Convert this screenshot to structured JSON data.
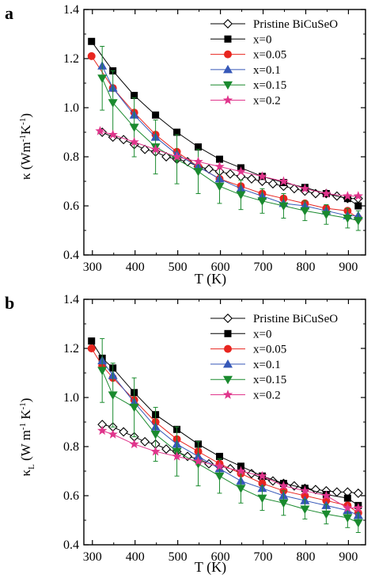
{
  "panels": [
    {
      "label": "a",
      "xlabel": "T (K)",
      "ylabel_main": "κ (Wm",
      "ylabel_sup1": "-1",
      "ylabel_mid": "K",
      "ylabel_sup2": "-1",
      "ylabel_end": ")"
    },
    {
      "label": "b",
      "xlabel": "T (K)",
      "ylabel_main": "κ",
      "ylabel_sub": "L",
      "ylabel_rest": " (W m",
      "ylabel_sup1": "-1",
      "ylabel_mid": " K",
      "ylabel_sup2": "-1",
      "ylabel_end": ")"
    }
  ],
  "chart_data": [
    {
      "type": "line",
      "title": "",
      "xlabel": "T (K)",
      "ylabel": "κ (Wm-1K-1)",
      "xlim": [
        280,
        940
      ],
      "ylim": [
        0.4,
        1.4
      ],
      "xticks": [
        300,
        400,
        500,
        600,
        700,
        800,
        900
      ],
      "yticks": [
        0.4,
        0.6,
        0.8,
        1.0,
        1.2,
        1.4
      ],
      "tick_labels_x": [
        "300",
        "400",
        "500",
        "600",
        "700",
        "800",
        "900"
      ],
      "tick_labels_y": [
        "0.4",
        "0.6",
        "0.8",
        "1.0",
        "1.2",
        "1.4"
      ],
      "legend_position": "top-right",
      "series": [
        {
          "name": "Pristine BiCuSeO",
          "marker": "diamond-open",
          "color": "#000000",
          "x": [
            323,
            348,
            373,
            398,
            423,
            448,
            473,
            498,
            523,
            548,
            573,
            598,
            623,
            648,
            673,
            698,
            723,
            748,
            773,
            798,
            823,
            848,
            873,
            898,
            923
          ],
          "y": [
            0.9,
            0.88,
            0.87,
            0.85,
            0.83,
            0.82,
            0.8,
            0.79,
            0.78,
            0.76,
            0.75,
            0.74,
            0.73,
            0.72,
            0.71,
            0.7,
            0.69,
            0.68,
            0.67,
            0.66,
            0.65,
            0.65,
            0.64,
            0.63,
            0.63
          ]
        },
        {
          "name": "x=0",
          "marker": "square",
          "color": "#000000",
          "x": [
            298,
            348,
            398,
            448,
            498,
            548,
            598,
            648,
            698,
            748,
            798,
            848,
            898,
            923
          ],
          "y": [
            1.27,
            1.15,
            1.05,
            0.97,
            0.9,
            0.84,
            0.79,
            0.755,
            0.72,
            0.695,
            0.675,
            0.65,
            0.63,
            0.6
          ]
        },
        {
          "name": "x=0.05",
          "marker": "circle",
          "color": "#e8251f",
          "x": [
            298,
            348,
            398,
            448,
            498,
            548,
            598,
            648,
            698,
            748,
            798,
            848,
            898,
            923
          ],
          "y": [
            1.21,
            1.08,
            0.98,
            0.89,
            0.82,
            0.76,
            0.71,
            0.68,
            0.65,
            0.63,
            0.61,
            0.59,
            0.58,
            0.55
          ]
        },
        {
          "name": "x=0.1",
          "marker": "triangle-up",
          "color": "#3658b8",
          "x": [
            323,
            348,
            398,
            448,
            498,
            548,
            598,
            648,
            698,
            748,
            798,
            848,
            898,
            923
          ],
          "y": [
            1.17,
            1.08,
            0.97,
            0.88,
            0.81,
            0.76,
            0.71,
            0.67,
            0.64,
            0.61,
            0.6,
            0.58,
            0.56,
            0.56
          ]
        },
        {
          "name": "x=0.15",
          "marker": "triangle-down",
          "color": "#1a8a2e",
          "x": [
            323,
            348,
            398,
            448,
            498,
            548,
            598,
            648,
            698,
            748,
            798,
            848,
            898,
            923
          ],
          "y": [
            1.12,
            1.02,
            0.92,
            0.84,
            0.79,
            0.74,
            0.68,
            0.645,
            0.62,
            0.6,
            0.58,
            0.565,
            0.55,
            0.54
          ],
          "error": [
            0.13,
            0.13,
            0.12,
            0.11,
            0.1,
            0.09,
            0.07,
            0.06,
            0.05,
            0.05,
            0.04,
            0.04,
            0.04,
            0.04
          ]
        },
        {
          "name": "x=0.2",
          "marker": "star",
          "color": "#e0358c",
          "x": [
            318,
            348,
            398,
            448,
            498,
            548,
            598,
            648,
            698,
            748,
            798,
            848,
            898,
            923
          ],
          "y": [
            0.905,
            0.89,
            0.86,
            0.83,
            0.8,
            0.78,
            0.76,
            0.74,
            0.72,
            0.7,
            0.67,
            0.65,
            0.64,
            0.64
          ]
        }
      ]
    },
    {
      "type": "line",
      "title": "",
      "xlabel": "T (K)",
      "ylabel": "κL (W m-1 K-1)",
      "xlim": [
        280,
        940
      ],
      "ylim": [
        0.4,
        1.4
      ],
      "xticks": [
        300,
        400,
        500,
        600,
        700,
        800,
        900
      ],
      "yticks": [
        0.4,
        0.6,
        0.8,
        1.0,
        1.2,
        1.4
      ],
      "tick_labels_x": [
        "300",
        "400",
        "500",
        "600",
        "700",
        "800",
        "900"
      ],
      "tick_labels_y": [
        "0.4",
        "0.6",
        "0.8",
        "1.0",
        "1.2",
        "1.4"
      ],
      "legend_position": "top-right",
      "series": [
        {
          "name": "Pristine BiCuSeO",
          "marker": "diamond-open",
          "color": "#000000",
          "x": [
            323,
            348,
            373,
            398,
            423,
            448,
            473,
            498,
            523,
            548,
            573,
            598,
            623,
            648,
            673,
            698,
            723,
            748,
            773,
            798,
            823,
            848,
            873,
            898,
            923
          ],
          "y": [
            0.89,
            0.88,
            0.86,
            0.84,
            0.82,
            0.81,
            0.79,
            0.78,
            0.76,
            0.75,
            0.73,
            0.72,
            0.71,
            0.7,
            0.69,
            0.67,
            0.66,
            0.65,
            0.64,
            0.63,
            0.625,
            0.62,
            0.615,
            0.615,
            0.61
          ]
        },
        {
          "name": "x=0",
          "marker": "square",
          "color": "#000000",
          "x": [
            298,
            323,
            348,
            398,
            448,
            498,
            548,
            598,
            648,
            698,
            748,
            798,
            848,
            898,
            923
          ],
          "y": [
            1.23,
            1.16,
            1.12,
            1.02,
            0.93,
            0.87,
            0.81,
            0.76,
            0.72,
            0.68,
            0.65,
            0.63,
            0.605,
            0.59,
            0.56
          ]
        },
        {
          "name": "x=0.05",
          "marker": "circle",
          "color": "#e8251f",
          "x": [
            298,
            323,
            348,
            398,
            448,
            498,
            548,
            598,
            648,
            698,
            748,
            798,
            848,
            898,
            923
          ],
          "y": [
            1.2,
            1.13,
            1.08,
            0.99,
            0.9,
            0.83,
            0.78,
            0.73,
            0.69,
            0.65,
            0.62,
            0.6,
            0.58,
            0.56,
            0.53
          ]
        },
        {
          "name": "x=0.1",
          "marker": "triangle-up",
          "color": "#3658b8",
          "x": [
            323,
            348,
            398,
            448,
            498,
            548,
            598,
            648,
            698,
            748,
            798,
            848,
            898,
            923
          ],
          "y": [
            1.15,
            1.09,
            0.98,
            0.88,
            0.81,
            0.76,
            0.71,
            0.66,
            0.63,
            0.6,
            0.58,
            0.56,
            0.54,
            0.52
          ]
        },
        {
          "name": "x=0.15",
          "marker": "triangle-down",
          "color": "#1a8a2e",
          "x": [
            323,
            348,
            398,
            448,
            498,
            548,
            598,
            648,
            698,
            748,
            798,
            848,
            898,
            923
          ],
          "y": [
            1.11,
            1.01,
            0.96,
            0.85,
            0.78,
            0.73,
            0.68,
            0.63,
            0.59,
            0.57,
            0.545,
            0.525,
            0.51,
            0.49
          ],
          "error": [
            0.13,
            0.13,
            0.12,
            0.11,
            0.1,
            0.09,
            0.07,
            0.06,
            0.05,
            0.05,
            0.04,
            0.04,
            0.04,
            0.04
          ]
        },
        {
          "name": "x=0.2",
          "marker": "star",
          "color": "#e0358c",
          "x": [
            323,
            348,
            398,
            448,
            498,
            548,
            598,
            648,
            698,
            748,
            798,
            848,
            898,
            923
          ],
          "y": [
            0.865,
            0.85,
            0.81,
            0.78,
            0.76,
            0.74,
            0.72,
            0.7,
            0.68,
            0.64,
            0.62,
            0.6,
            0.55,
            0.55
          ]
        }
      ]
    }
  ]
}
